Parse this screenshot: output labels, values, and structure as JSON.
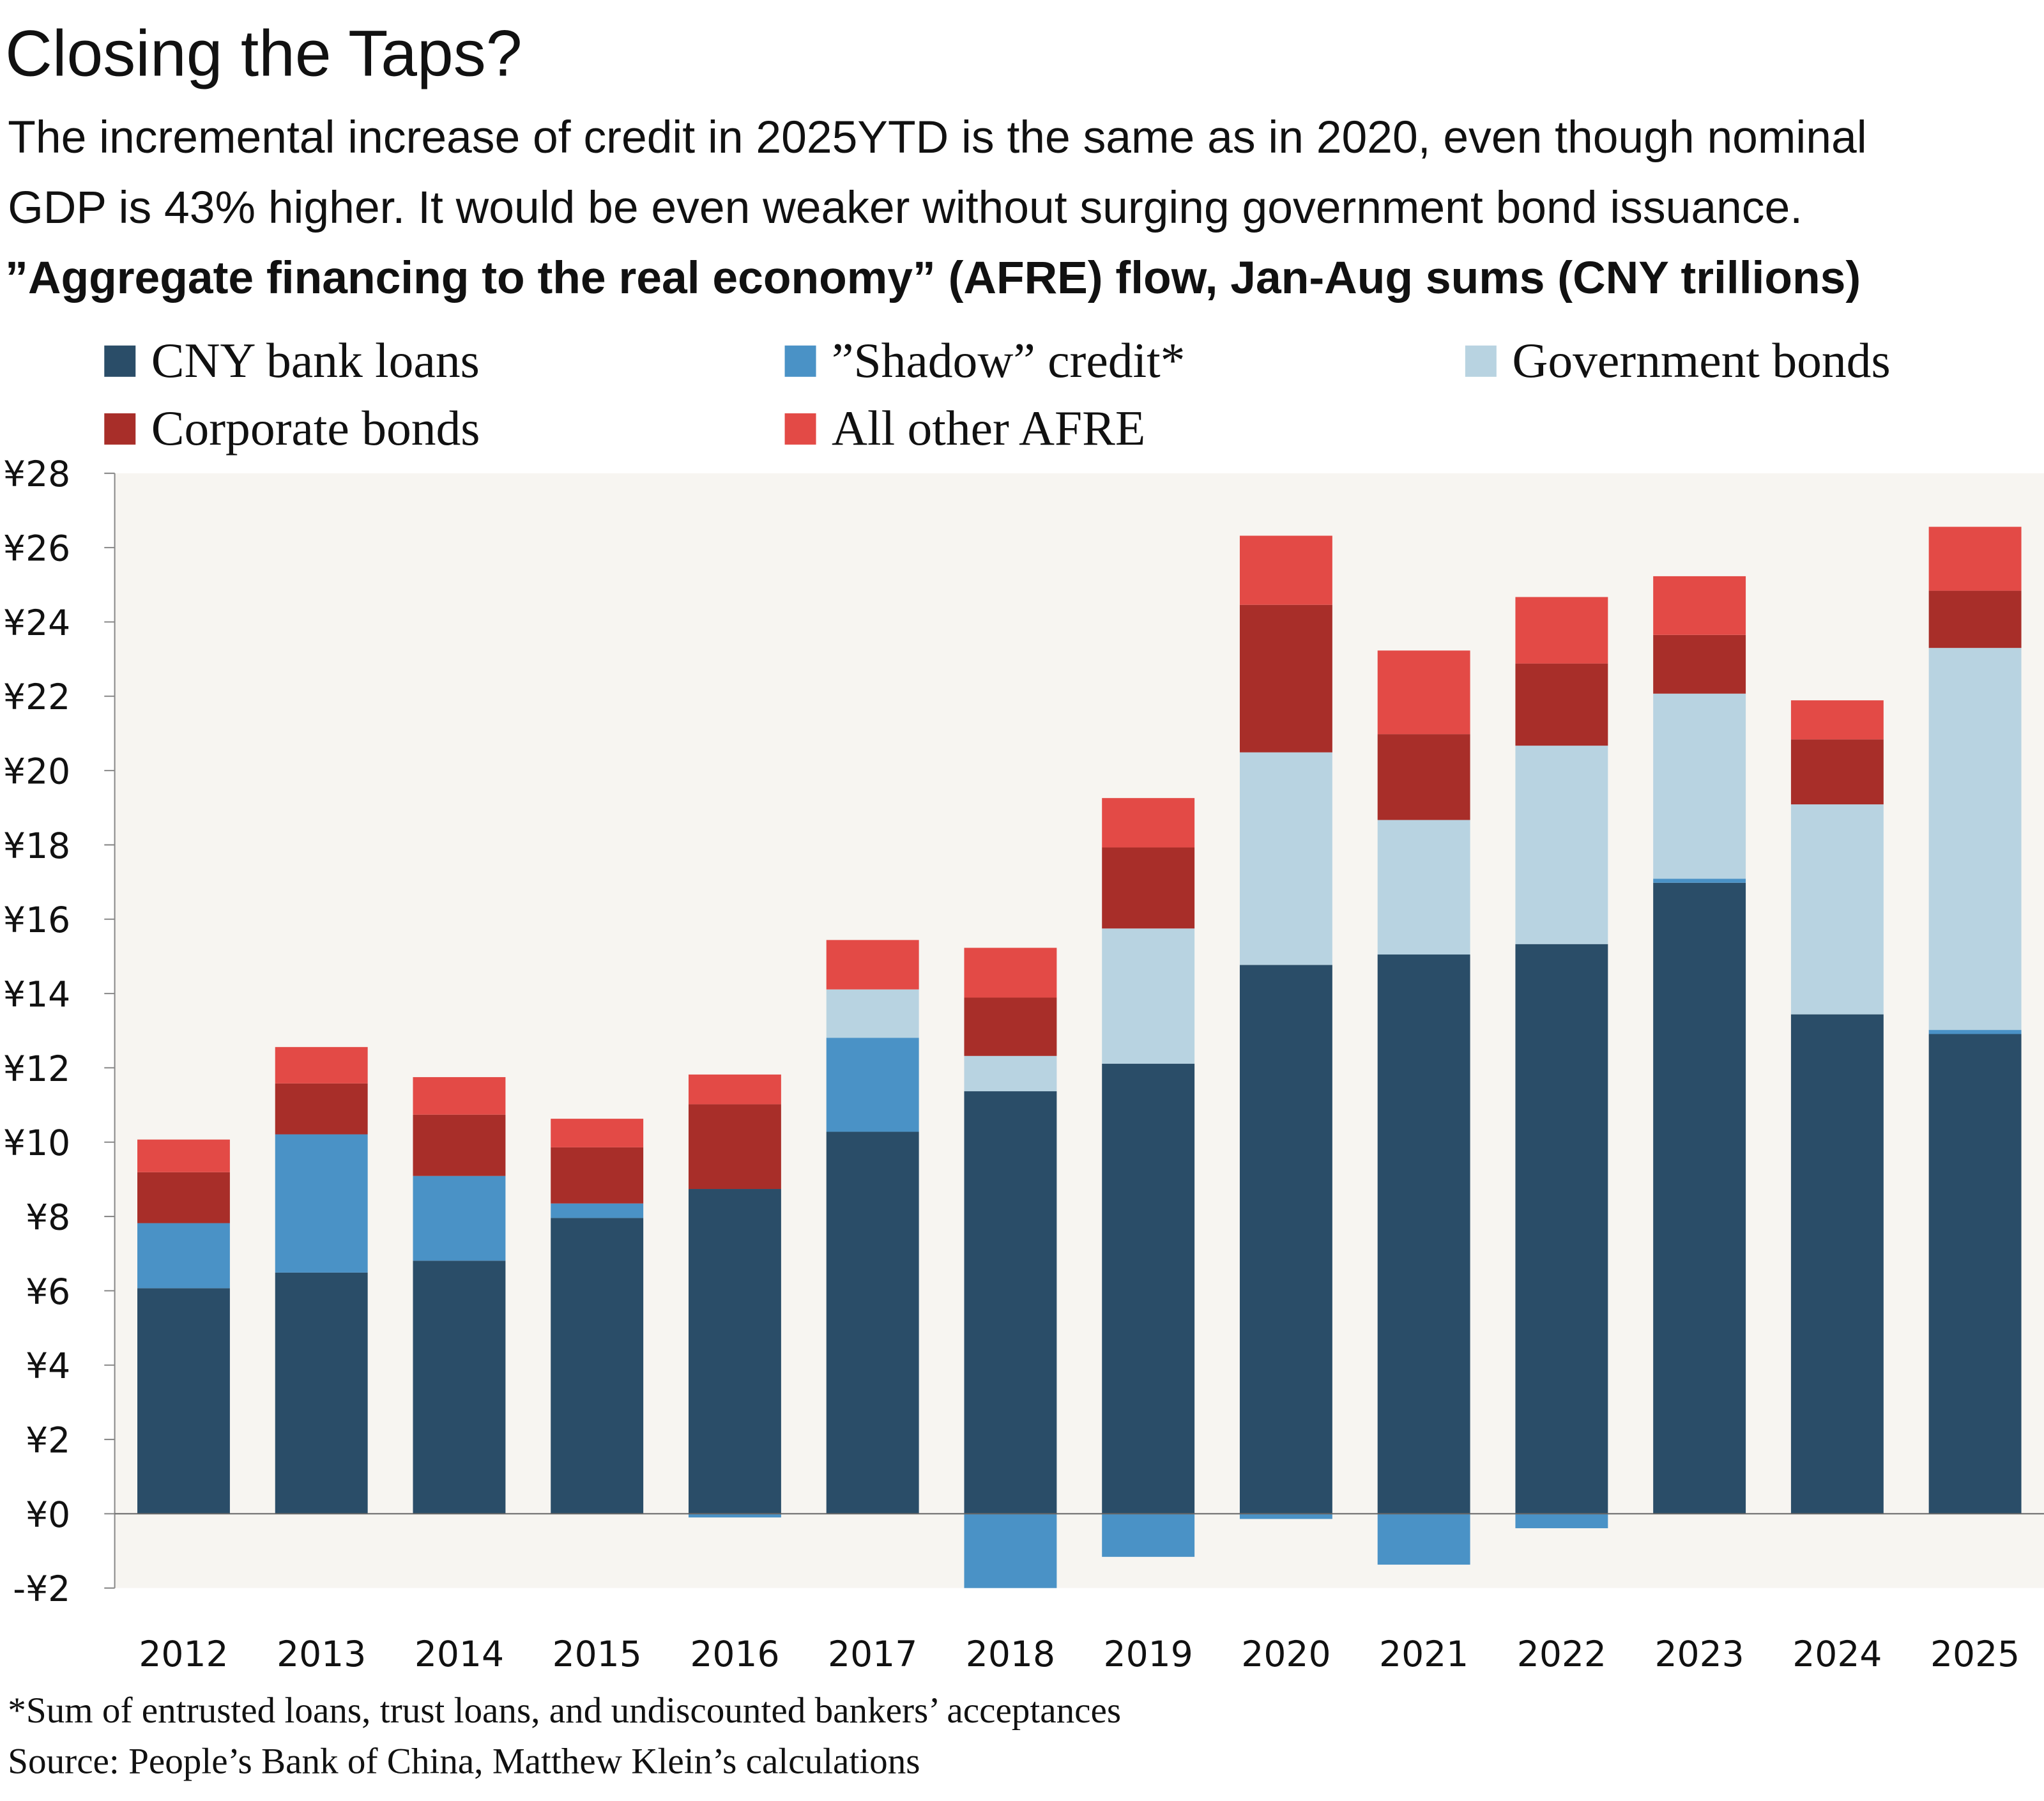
{
  "title": "Closing the Taps?",
  "subtitle_lines": [
    "The incremental increase of credit in 2025YTD is the same as in 2020, even though nominal",
    "GDP is 43% higher. It would be even weaker without surging government bond issuance."
  ],
  "footnote": "*Sum of entrusted loans, trust loans, and undiscounted bankers’ acceptances",
  "source": "Source: People’s Bank of China, Matthew Klein’s calculations",
  "chart_data": {
    "type": "bar",
    "stacked": true,
    "title": "”Aggregate financing to the real economy” (AFRE) flow, Jan-Aug sums (CNY trillions)",
    "categories": [
      "2012",
      "2013",
      "2014",
      "2015",
      "2016",
      "2017",
      "2018",
      "2019",
      "2020",
      "2021",
      "2022",
      "2023",
      "2024",
      "2025"
    ],
    "ylim": [
      -2,
      28
    ],
    "yticks": [
      -2,
      0,
      2,
      4,
      6,
      8,
      10,
      12,
      14,
      16,
      18,
      20,
      22,
      24,
      26,
      28
    ],
    "ytick_labels": [
      "-¥2",
      "¥0",
      "¥2",
      "¥4",
      "¥6",
      "¥8",
      "¥10",
      "¥12",
      "¥14",
      "¥16",
      "¥18",
      "¥20",
      "¥22",
      "¥24",
      "¥26",
      "¥28"
    ],
    "legend_placement": "top",
    "series": [
      {
        "name": "CNY bank loans",
        "color": "#2a4d68",
        "values": [
          6.07,
          6.49,
          6.81,
          7.96,
          8.74,
          10.28,
          11.37,
          12.11,
          14.77,
          15.05,
          15.33,
          16.98,
          13.44,
          12.91
        ]
      },
      {
        "name": "”Shadow” credit*",
        "color": "#4a92c6",
        "values": [
          1.75,
          3.72,
          2.28,
          0.39,
          -0.1,
          2.53,
          -2.0,
          -1.16,
          -0.14,
          -1.37,
          -0.39,
          0.11,
          0,
          0.11
        ]
      },
      {
        "name": "Government bonds",
        "color": "#b8d3e1",
        "values": [
          0,
          0,
          0,
          0,
          0,
          1.3,
          0.95,
          3.64,
          5.72,
          3.62,
          5.34,
          4.98,
          5.65,
          10.28
        ]
      },
      {
        "name": "Corporate bonds",
        "color": "#a82e29",
        "values": [
          1.37,
          1.37,
          1.65,
          1.51,
          2.28,
          0,
          1.57,
          2.18,
          3.97,
          2.31,
          2.21,
          1.58,
          1.75,
          1.54
        ]
      },
      {
        "name": "All other AFRE",
        "color": "#e34a46",
        "values": [
          0.88,
          0.98,
          1.01,
          0.77,
          0.8,
          1.33,
          1.34,
          1.33,
          1.86,
          2.25,
          1.79,
          1.58,
          1.05,
          1.72
        ]
      }
    ],
    "plot_background": "#f7f5f1",
    "grid": false
  }
}
